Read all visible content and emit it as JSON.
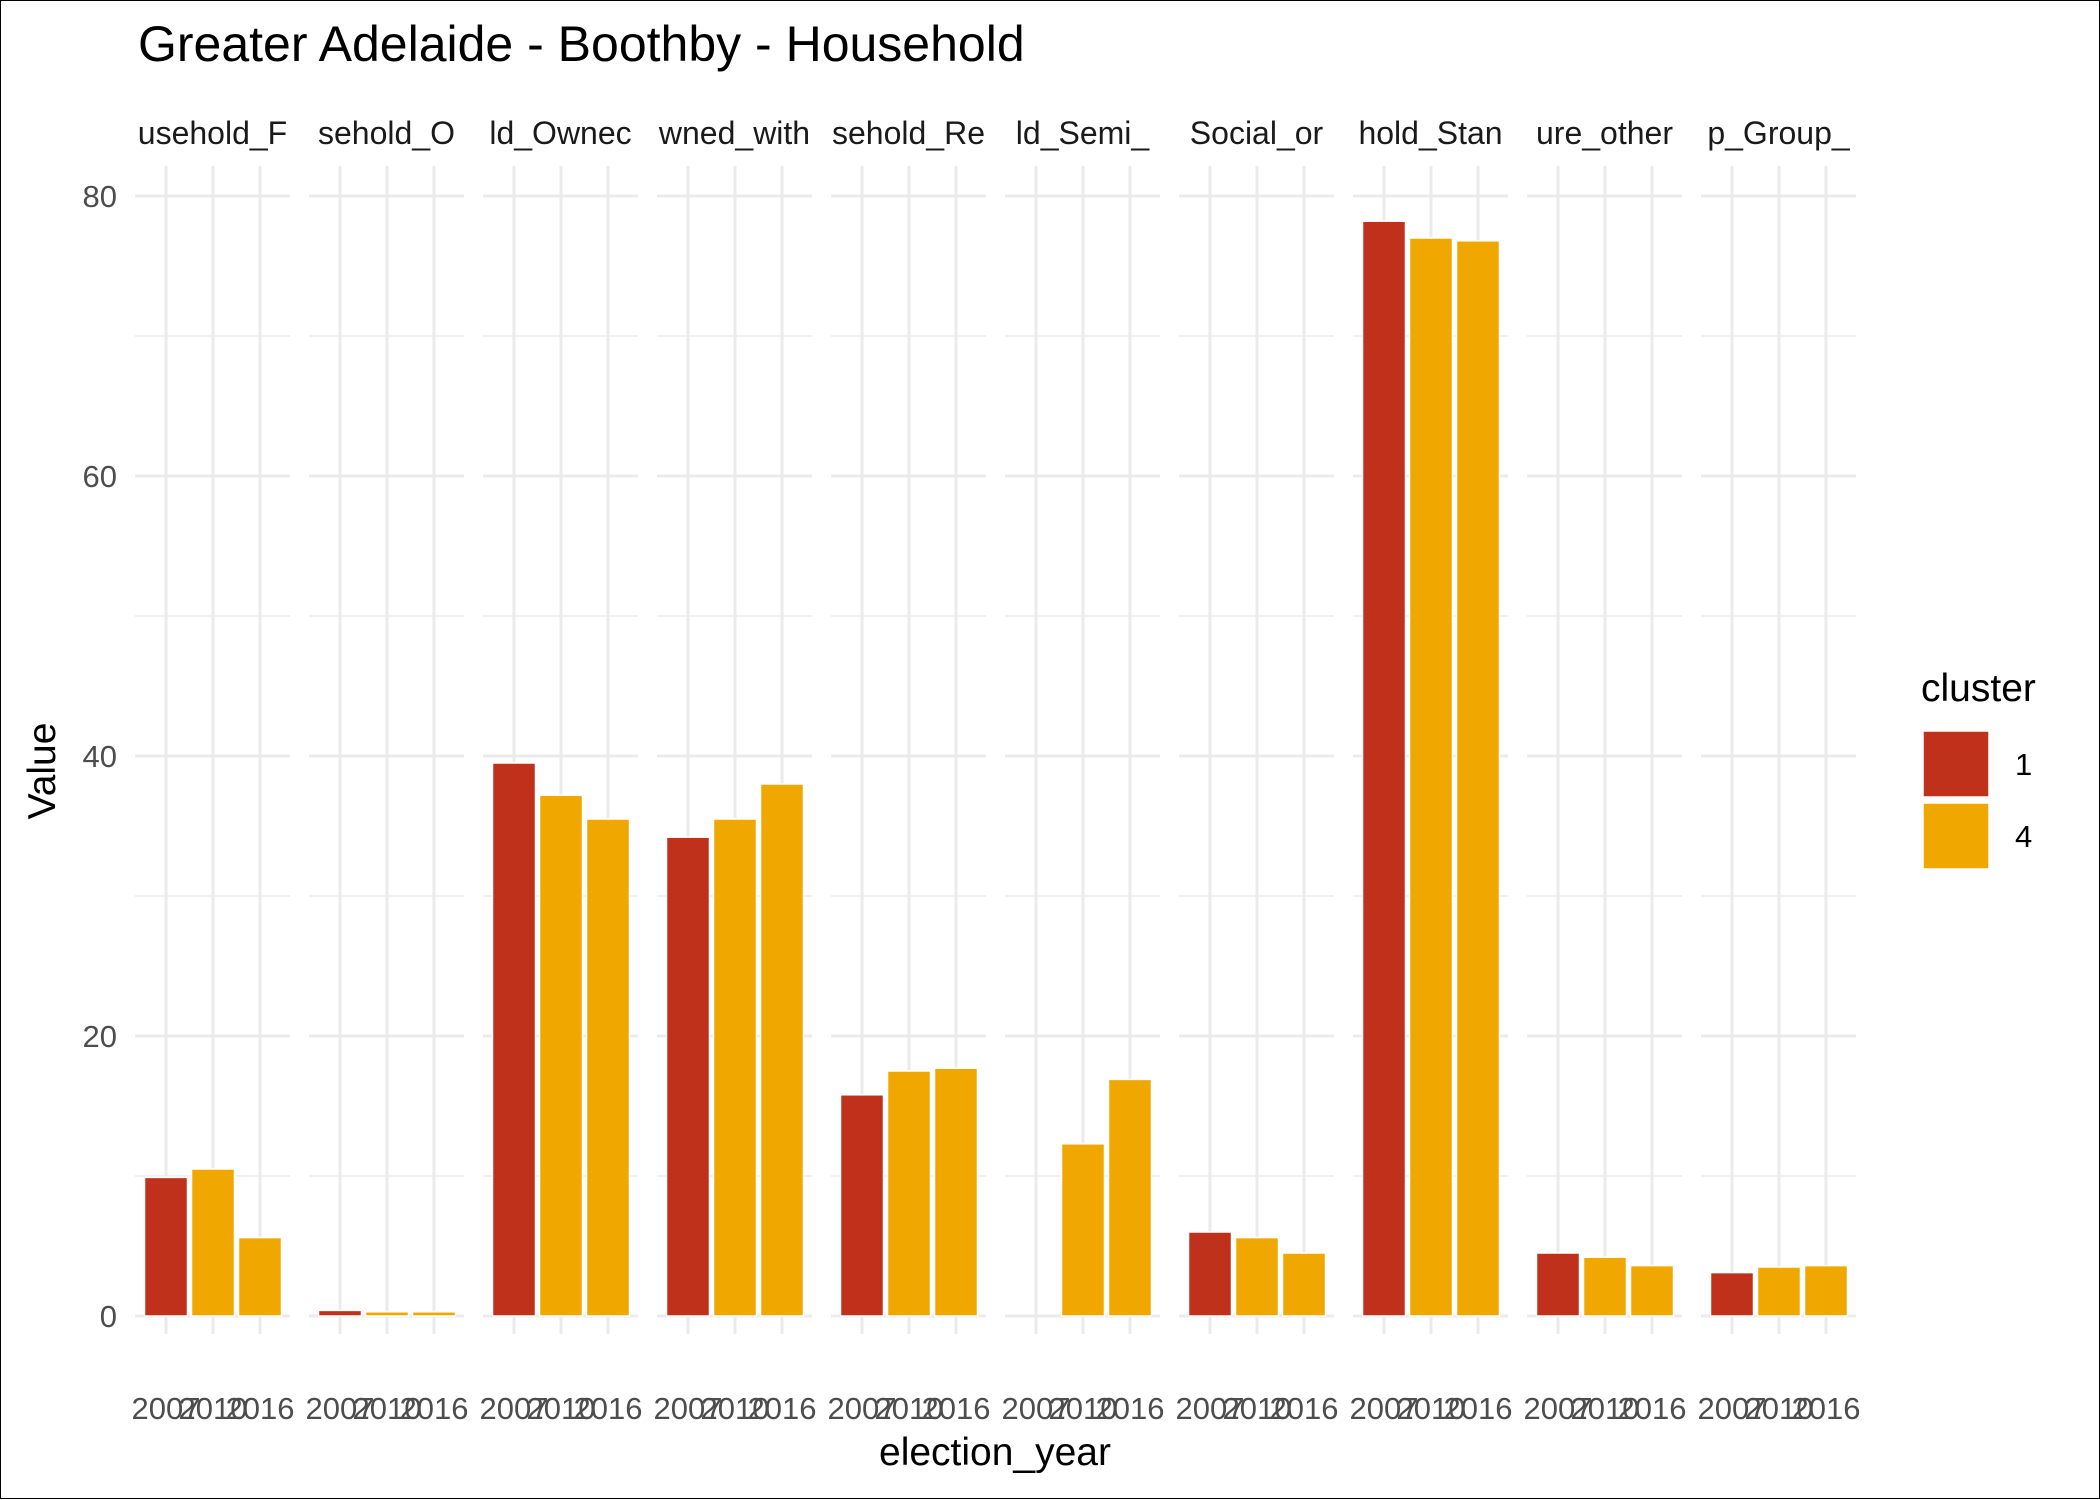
{
  "chart_data": {
    "type": "bar",
    "title": "Greater Adelaide - Boothby - Household",
    "xlabel": "election_year",
    "ylabel": "Value",
    "ylim": [
      0,
      80
    ],
    "y_ticks": [
      "0",
      "20",
      "40",
      "60",
      "80"
    ],
    "grid": true,
    "x_categories": [
      "2007",
      "2010",
      "2016"
    ],
    "facets": [
      {
        "label": "usehold_F",
        "values": [
          {
            "x": "2007",
            "cluster": "1",
            "y": 9.9
          },
          {
            "x": "2010",
            "cluster": "4",
            "y": 10.5
          },
          {
            "x": "2016",
            "cluster": "4",
            "y": 5.6
          }
        ]
      },
      {
        "label": "sehold_O",
        "values": [
          {
            "x": "2007",
            "cluster": "1",
            "y": 0.4
          },
          {
            "x": "2010",
            "cluster": "4",
            "y": 0.3
          },
          {
            "x": "2016",
            "cluster": "4",
            "y": 0.3
          }
        ]
      },
      {
        "label": "ld_Ownec",
        "values": [
          {
            "x": "2007",
            "cluster": "1",
            "y": 39.5
          },
          {
            "x": "2010",
            "cluster": "4",
            "y": 37.2
          },
          {
            "x": "2016",
            "cluster": "4",
            "y": 35.5
          }
        ]
      },
      {
        "label": "wned_with",
        "values": [
          {
            "x": "2007",
            "cluster": "1",
            "y": 34.2
          },
          {
            "x": "2010",
            "cluster": "4",
            "y": 35.5
          },
          {
            "x": "2016",
            "cluster": "4",
            "y": 38.0
          }
        ]
      },
      {
        "label": "sehold_Re",
        "values": [
          {
            "x": "2007",
            "cluster": "1",
            "y": 15.8
          },
          {
            "x": "2010",
            "cluster": "4",
            "y": 17.5
          },
          {
            "x": "2016",
            "cluster": "4",
            "y": 17.7
          }
        ]
      },
      {
        "label": "ld_Semi_",
        "values": [
          {
            "x": "2010",
            "cluster": "4",
            "y": 12.3
          },
          {
            "x": "2016",
            "cluster": "4",
            "y": 16.9
          }
        ]
      },
      {
        "label": "Social_or",
        "values": [
          {
            "x": "2007",
            "cluster": "1",
            "y": 6.0
          },
          {
            "x": "2010",
            "cluster": "4",
            "y": 5.6
          },
          {
            "x": "2016",
            "cluster": "4",
            "y": 4.5
          }
        ]
      },
      {
        "label": "hold_Stan",
        "values": [
          {
            "x": "2007",
            "cluster": "1",
            "y": 78.2
          },
          {
            "x": "2010",
            "cluster": "4",
            "y": 77.0
          },
          {
            "x": "2016",
            "cluster": "4",
            "y": 76.8
          }
        ]
      },
      {
        "label": "ure_other",
        "values": [
          {
            "x": "2007",
            "cluster": "1",
            "y": 4.5
          },
          {
            "x": "2010",
            "cluster": "4",
            "y": 4.2
          },
          {
            "x": "2016",
            "cluster": "4",
            "y": 3.6
          }
        ]
      },
      {
        "label": "p_Group_",
        "values": [
          {
            "x": "2007",
            "cluster": "1",
            "y": 3.1
          },
          {
            "x": "2010",
            "cluster": "4",
            "y": 3.5
          },
          {
            "x": "2016",
            "cluster": "4",
            "y": 3.6
          }
        ]
      }
    ],
    "legend": {
      "title": "cluster",
      "position": "right",
      "entries": [
        {
          "label": "1",
          "color": "#C0311C"
        },
        {
          "label": "4",
          "color": "#F0A800"
        }
      ]
    },
    "colors": {
      "cluster_1": "#C0311C",
      "cluster_4": "#F0A800",
      "grid": "#EBEBEB"
    }
  }
}
